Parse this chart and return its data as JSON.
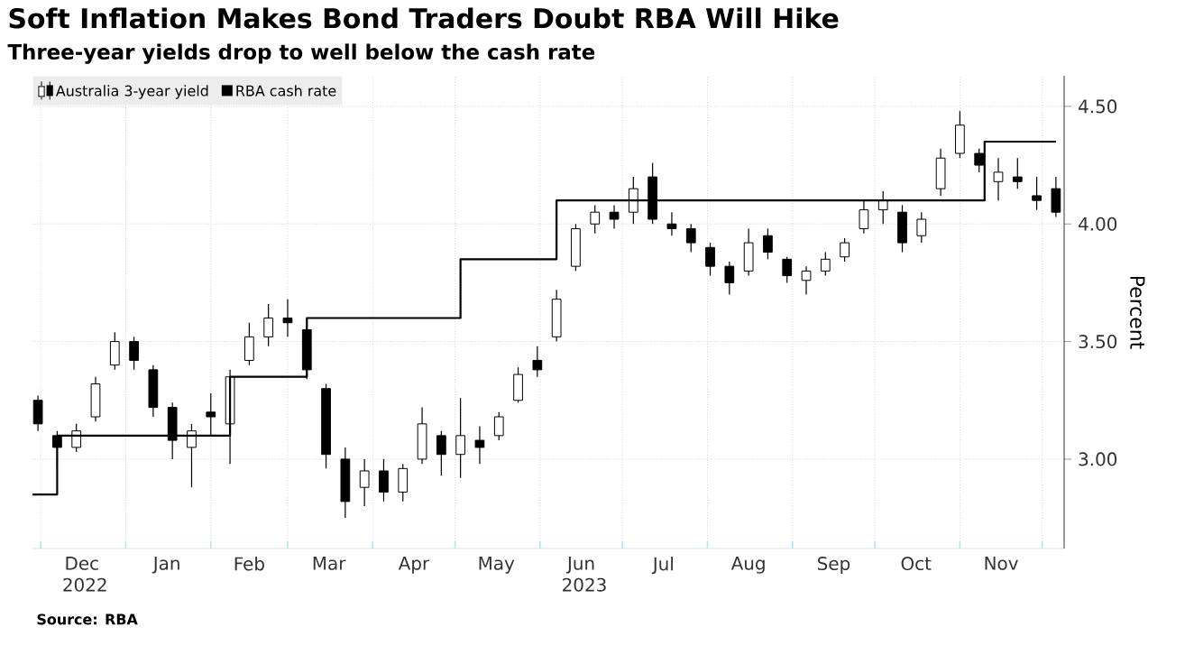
{
  "chart_data": {
    "type": "candlestick",
    "title": "Soft Inflation Makes Bond Traders Doubt RBA Will Hike",
    "subtitle": "Three-year yields drop to well below the cash rate",
    "ylabel": "Percent",
    "annotations": [
      "Source: RBA"
    ],
    "legend": "top left",
    "grid": true,
    "xlim": [
      "2022-11-28",
      "2023-12-09"
    ],
    "ylim": [
      2.62,
      4.63
    ],
    "yticks": [
      {
        "value": 3.0,
        "label": "3.00"
      },
      {
        "value": 3.5,
        "label": "3.50"
      },
      {
        "value": 4.0,
        "label": "4.00"
      },
      {
        "value": 4.5,
        "label": "4.50"
      }
    ],
    "xticks": [
      {
        "value": "2022-12-01",
        "label": null
      },
      {
        "value": "2022-12-16",
        "label": "Dec 2022"
      },
      {
        "value": "2023-01-01",
        "label": null
      },
      {
        "value": "2023-01-16",
        "label": "Jan"
      },
      {
        "value": "2023-02-01",
        "label": null
      },
      {
        "value": "2023-02-15",
        "label": "Feb"
      },
      {
        "value": "2023-03-01",
        "label": null
      },
      {
        "value": "2023-03-16",
        "label": "Mar"
      },
      {
        "value": "2023-04-01",
        "label": null
      },
      {
        "value": "2023-04-16",
        "label": "Apr"
      },
      {
        "value": "2023-05-01",
        "label": null
      },
      {
        "value": "2023-05-16",
        "label": "May"
      },
      {
        "value": "2023-06-01",
        "label": null
      },
      {
        "value": "2023-06-16",
        "label": "Jun 2023"
      },
      {
        "value": "2023-07-01",
        "label": null
      },
      {
        "value": "2023-07-16",
        "label": "Jul"
      },
      {
        "value": "2023-08-01",
        "label": null
      },
      {
        "value": "2023-08-16",
        "label": "Aug"
      },
      {
        "value": "2023-09-01",
        "label": null
      },
      {
        "value": "2023-09-16",
        "label": "Sep"
      },
      {
        "value": "2023-10-01",
        "label": null
      },
      {
        "value": "2023-10-16",
        "label": "Oct"
      },
      {
        "value": "2023-11-01",
        "label": null
      },
      {
        "value": "2023-11-16",
        "label": "Nov"
      },
      {
        "value": "2023-12-01",
        "label": null
      }
    ],
    "series": [
      {
        "name": "Australia 3-year yield",
        "color": "#000000",
        "x": [
          "2022-11-30",
          "2022-12-07",
          "2022-12-14",
          "2022-12-21",
          "2022-12-28",
          "2023-01-04",
          "2023-01-11",
          "2023-01-18",
          "2023-01-25",
          "2023-02-01",
          "2023-02-08",
          "2023-02-15",
          "2023-02-22",
          "2023-03-01",
          "2023-03-08",
          "2023-03-15",
          "2023-03-22",
          "2023-03-29",
          "2023-04-05",
          "2023-04-12",
          "2023-04-19",
          "2023-04-26",
          "2023-05-03",
          "2023-05-10",
          "2023-05-17",
          "2023-05-24",
          "2023-05-31",
          "2023-06-07",
          "2023-06-14",
          "2023-06-21",
          "2023-06-28",
          "2023-07-05",
          "2023-07-12",
          "2023-07-19",
          "2023-07-26",
          "2023-08-02",
          "2023-08-09",
          "2023-08-16",
          "2023-08-23",
          "2023-08-30",
          "2023-09-06",
          "2023-09-13",
          "2023-09-20",
          "2023-09-27",
          "2023-10-04",
          "2023-10-11",
          "2023-10-18",
          "2023-10-25",
          "2023-11-01",
          "2023-11-08",
          "2023-11-15",
          "2023-11-22",
          "2023-11-29",
          "2023-12-06"
        ],
        "ohlc": [
          [
            3.25,
            3.27,
            3.12,
            3.15
          ],
          [
            3.1,
            3.12,
            2.97,
            3.05
          ],
          [
            3.05,
            3.15,
            3.03,
            3.12
          ],
          [
            3.18,
            3.35,
            3.16,
            3.32
          ],
          [
            3.4,
            3.54,
            3.38,
            3.5
          ],
          [
            3.5,
            3.52,
            3.38,
            3.42
          ],
          [
            3.38,
            3.4,
            3.18,
            3.22
          ],
          [
            3.22,
            3.24,
            3.0,
            3.08
          ],
          [
            3.05,
            3.15,
            2.88,
            3.12
          ],
          [
            3.2,
            3.28,
            3.1,
            3.18
          ],
          [
            3.15,
            3.38,
            2.98,
            3.35
          ],
          [
            3.42,
            3.58,
            3.4,
            3.52
          ],
          [
            3.52,
            3.66,
            3.48,
            3.6
          ],
          [
            3.6,
            3.68,
            3.52,
            3.58
          ],
          [
            3.55,
            3.56,
            3.34,
            3.38
          ],
          [
            3.3,
            3.32,
            2.96,
            3.02
          ],
          [
            3.0,
            3.05,
            2.75,
            2.82
          ],
          [
            2.88,
            3.0,
            2.8,
            2.95
          ],
          [
            2.95,
            3.0,
            2.82,
            2.86
          ],
          [
            2.86,
            2.98,
            2.82,
            2.96
          ],
          [
            3.0,
            3.22,
            2.98,
            3.15
          ],
          [
            3.1,
            3.12,
            2.93,
            3.02
          ],
          [
            3.02,
            3.26,
            2.92,
            3.1
          ],
          [
            3.08,
            3.14,
            2.98,
            3.05
          ],
          [
            3.1,
            3.2,
            3.08,
            3.18
          ],
          [
            3.25,
            3.39,
            3.24,
            3.36
          ],
          [
            3.42,
            3.48,
            3.35,
            3.38
          ],
          [
            3.52,
            3.72,
            3.5,
            3.68
          ],
          [
            3.82,
            4.0,
            3.8,
            3.98
          ],
          [
            4.0,
            4.08,
            3.96,
            4.05
          ],
          [
            4.05,
            4.08,
            3.98,
            4.02
          ],
          [
            4.05,
            4.2,
            4.0,
            4.15
          ],
          [
            4.2,
            4.26,
            4.0,
            4.02
          ],
          [
            4.0,
            4.05,
            3.95,
            3.98
          ],
          [
            3.98,
            4.0,
            3.88,
            3.92
          ],
          [
            3.9,
            3.92,
            3.78,
            3.82
          ],
          [
            3.82,
            3.84,
            3.7,
            3.75
          ],
          [
            3.8,
            3.98,
            3.78,
            3.92
          ],
          [
            3.95,
            3.98,
            3.85,
            3.88
          ],
          [
            3.85,
            3.86,
            3.75,
            3.78
          ],
          [
            3.76,
            3.82,
            3.7,
            3.8
          ],
          [
            3.8,
            3.88,
            3.78,
            3.85
          ],
          [
            3.86,
            3.94,
            3.84,
            3.92
          ],
          [
            3.98,
            4.1,
            3.96,
            4.06
          ],
          [
            4.06,
            4.14,
            4.0,
            4.1
          ],
          [
            4.05,
            4.08,
            3.88,
            3.92
          ],
          [
            3.95,
            4.05,
            3.92,
            4.02
          ],
          [
            4.15,
            4.32,
            4.12,
            4.28
          ],
          [
            4.3,
            4.48,
            4.28,
            4.42
          ],
          [
            4.3,
            4.32,
            4.22,
            4.25
          ],
          [
            4.18,
            4.28,
            4.1,
            4.22
          ],
          [
            4.2,
            4.28,
            4.15,
            4.18
          ],
          [
            4.12,
            4.2,
            4.06,
            4.1
          ],
          [
            4.15,
            4.2,
            4.03,
            4.05
          ]
        ]
      },
      {
        "name": "RBA cash rate",
        "type": "step",
        "color": "#000000",
        "x": [
          "2022-11-28",
          "2022-12-07",
          "2023-02-08",
          "2023-03-08",
          "2023-05-03",
          "2023-06-07",
          "2023-11-10",
          "2023-12-06"
        ],
        "values": [
          2.85,
          3.1,
          3.35,
          3.6,
          3.85,
          4.1,
          4.35,
          4.35
        ]
      }
    ]
  }
}
